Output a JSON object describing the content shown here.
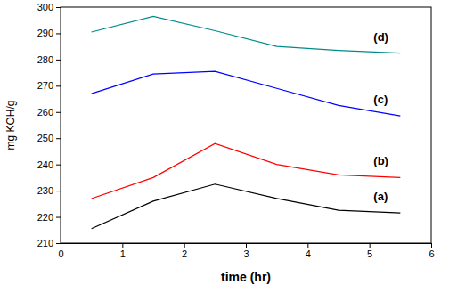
{
  "chart_data": {
    "type": "line",
    "x_label": "time (hr)",
    "y_label": "mg KOH/g",
    "x": [
      0.5,
      1.5,
      2.5,
      3.5,
      4.5,
      5.5
    ],
    "series": [
      {
        "name": "(a)",
        "color": "#000000",
        "values": [
          215.5,
          226,
          232.5,
          227,
          222.5,
          221.5
        ]
      },
      {
        "name": "(b)",
        "color": "#ff0000",
        "values": [
          227,
          235,
          248,
          240,
          236,
          235
        ]
      },
      {
        "name": "(c)",
        "color": "#0000ff",
        "values": [
          267,
          274.5,
          275.5,
          269,
          262.5,
          258.5
        ]
      },
      {
        "name": "(d)",
        "color": "#008b8b",
        "values": [
          290.5,
          296.5,
          291,
          285,
          283.5,
          282.5
        ]
      }
    ],
    "xlim": [
      0,
      6
    ],
    "xticks": [
      0,
      1,
      2,
      3,
      4,
      5,
      6
    ],
    "ylim": [
      210,
      300
    ],
    "yticks": [
      210,
      220,
      230,
      240,
      250,
      260,
      270,
      280,
      290,
      300
    ],
    "grid": false
  }
}
